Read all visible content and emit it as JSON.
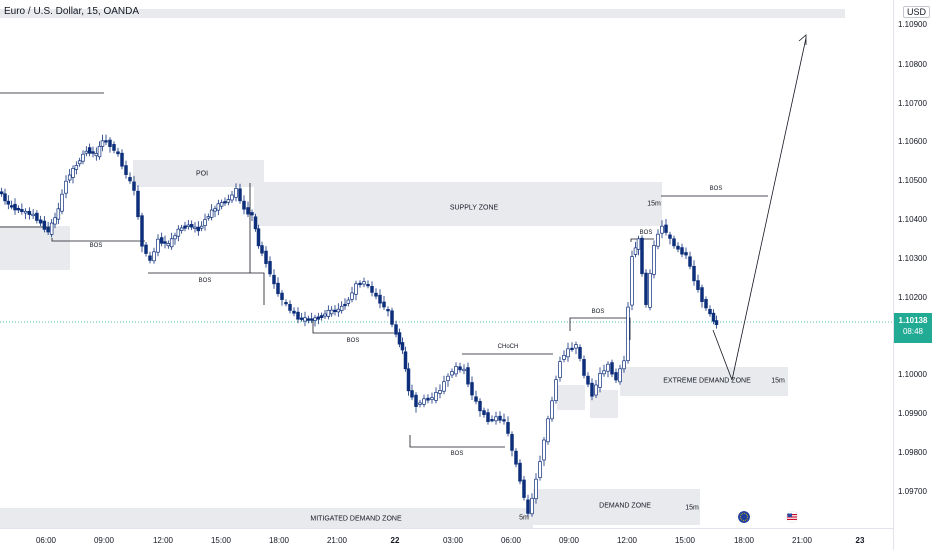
{
  "header": {
    "symbol_title": "Euro / U.S. Dollar, 15, OANDA"
  },
  "price_axis": {
    "currency": "USD",
    "ticks": [
      "1.10900",
      "1.10800",
      "1.10700",
      "1.10600",
      "1.10500",
      "1.10400",
      "1.10300",
      "1.10200",
      "1.10000",
      "1.09900",
      "1.09800",
      "1.09700"
    ]
  },
  "current_price": {
    "value": "1.10138",
    "countdown": "08:48",
    "color": "#22ab94"
  },
  "time_axis": {
    "labels": [
      "06:00",
      "09:00",
      "12:00",
      "15:00",
      "18:00",
      "21:00",
      "22",
      "03:00",
      "06:00",
      "09:00",
      "12:00",
      "15:00",
      "18:00",
      "21:00",
      "23"
    ],
    "bold": [
      "22",
      "23"
    ]
  },
  "annotations": {
    "poi": "POI",
    "supply_zone": "SUPPLY ZONE",
    "extreme_demand_zone": "EXTREME DEMAND ZONE",
    "extreme_demand_tf": "15m",
    "demand_zone": "DEMAND ZONE",
    "demand_tf": "15m",
    "mitigated_demand_zone": "MITIGATED DEMAND ZONE",
    "mitigated_tf": "5m",
    "supply_tf": "15m",
    "bos": "BOS",
    "choch": "CHoCH"
  },
  "colors": {
    "bull_fill": "#ffffff",
    "bull_border": "#0d2e7a",
    "bear": "#0d2e7a",
    "zone": "#e9eaee",
    "line": "#131722"
  },
  "icons": [
    "eu-flag-icon",
    "us-flag-icon"
  ]
}
